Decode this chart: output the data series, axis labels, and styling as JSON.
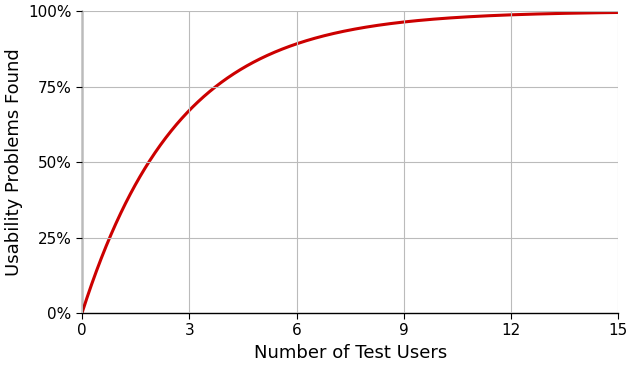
{
  "title": "",
  "xlabel": "Number of Test Users",
  "ylabel": "Usability Problems Found",
  "p": 0.31,
  "x_min": 0,
  "x_max": 15,
  "y_min": 0.0,
  "y_max": 1.0,
  "x_ticks": [
    0,
    3,
    6,
    9,
    12,
    15
  ],
  "y_ticks": [
    0.0,
    0.25,
    0.5,
    0.75,
    1.0
  ],
  "y_tick_labels": [
    "0%",
    "25%",
    "50%",
    "75%",
    "100%"
  ],
  "line_color": "#cc0000",
  "line_width": 2.2,
  "background_color": "#ffffff",
  "grid_color": "#bbbbbb",
  "xlabel_fontsize": 13,
  "ylabel_fontsize": 13,
  "tick_fontsize": 11
}
